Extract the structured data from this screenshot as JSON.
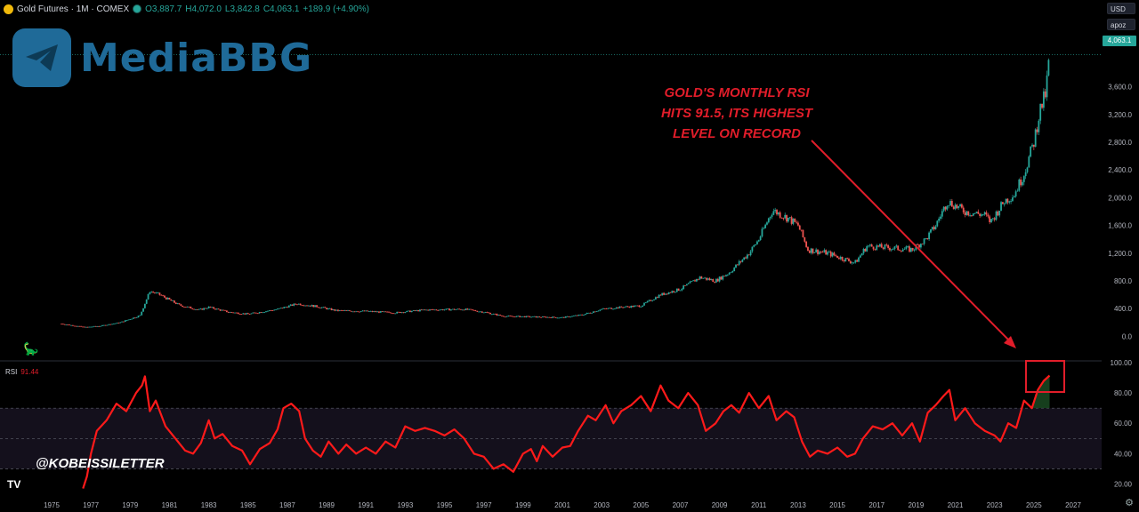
{
  "header": {
    "symbol": "Gold Futures · 1M · COMEX",
    "open": "O3,887.7",
    "high": "H4,072.0",
    "low": "L3,842.8",
    "close": "C4,063.1",
    "change": "+189.9 (+4.90%)",
    "currency_button": "USD",
    "scale_button": "apoz"
  },
  "watermark": {
    "text": "MediaBBG",
    "icon": "telegram-plane-icon"
  },
  "annotation": {
    "lines": [
      "GOLD'S MONTHLY RSI",
      "HITS 91.5, ITS HIGHEST",
      "LEVEL ON RECORD"
    ]
  },
  "handle": "@KOBEISSILETTER",
  "rsi": {
    "label": "RSI",
    "value": "91.44"
  },
  "last_price_tag": "4,063.1",
  "colors": {
    "up": "#26a69a",
    "down": "#ef5350",
    "rsi": "#ff1a1a",
    "accent": "#e11d2a",
    "watermark": "#1f6a98"
  },
  "chart_data": [
    {
      "type": "line",
      "subtype": "candlestick",
      "series_name": "Gold Futures",
      "x": [
        1975.5,
        1976.7,
        1977.5,
        1978.5,
        1979.5,
        1980.0,
        1980.5,
        1981.5,
        1982.5,
        1983.0,
        1984.0,
        1985.0,
        1986.5,
        1987.5,
        1988.5,
        1989.5,
        1991.0,
        1992.5,
        1994.0,
        1996.0,
        1997.0,
        1998.0,
        1999.5,
        2001.0,
        2002.0,
        2003.0,
        2004.0,
        2005.0,
        2006.0,
        2007.0,
        2008.0,
        2008.8,
        2009.5,
        2010.5,
        2011.0,
        2011.7,
        2012.5,
        2013.0,
        2013.5,
        2014.5,
        2015.9,
        2016.5,
        2017.5,
        2018.8,
        2019.5,
        2020.0,
        2020.6,
        2021.5,
        2022.5,
        2022.8,
        2023.5,
        2024.0,
        2024.5,
        2025.0,
        2025.3,
        2025.6,
        2025.8
      ],
      "y": [
        180,
        130,
        150,
        200,
        300,
        650,
        600,
        450,
        380,
        420,
        350,
        320,
        390,
        470,
        430,
        370,
        360,
        340,
        380,
        390,
        350,
        290,
        280,
        270,
        310,
        390,
        420,
        440,
        600,
        680,
        850,
        800,
        920,
        1200,
        1400,
        1820,
        1700,
        1600,
        1250,
        1200,
        1060,
        1300,
        1280,
        1250,
        1400,
        1600,
        1950,
        1800,
        1750,
        1650,
        1950,
        2050,
        2350,
        2800,
        3250,
        3500,
        4063.1
      ],
      "ylim": [
        -150,
        4250
      ],
      "y_ticks": [
        "0.0",
        "400.0",
        "800.0",
        "1,200.0",
        "1,600.0",
        "2,000.0",
        "2,400.0",
        "2,800.0",
        "3,200.0",
        "3,600.0"
      ]
    },
    {
      "type": "line",
      "series_name": "RSI",
      "x": [
        1976.6,
        1976.8,
        1977.0,
        1977.3,
        1977.8,
        1978.3,
        1978.8,
        1979.3,
        1979.6,
        1979.75,
        1980.0,
        1980.3,
        1980.8,
        1981.3,
        1981.8,
        1982.2,
        1982.6,
        1983.0,
        1983.3,
        1983.7,
        1984.2,
        1984.7,
        1985.1,
        1985.6,
        1986.1,
        1986.5,
        1986.8,
        1987.2,
        1987.6,
        1987.9,
        1988.3,
        1988.7,
        1989.1,
        1989.6,
        1990.0,
        1990.5,
        1991.0,
        1991.5,
        1992.0,
        1992.5,
        1993.0,
        1993.5,
        1994.0,
        1994.5,
        1995.0,
        1995.5,
        1996.0,
        1996.5,
        1997.0,
        1997.5,
        1998.0,
        1998.5,
        1999.0,
        1999.4,
        1999.7,
        2000.0,
        2000.5,
        2001.0,
        2001.4,
        2001.8,
        2002.3,
        2002.7,
        2003.2,
        2003.6,
        2004.0,
        2004.5,
        2005.0,
        2005.5,
        2006.0,
        2006.4,
        2006.9,
        2007.4,
        2007.9,
        2008.3,
        2008.8,
        2009.2,
        2009.6,
        2010.0,
        2010.5,
        2011.0,
        2011.5,
        2011.9,
        2012.4,
        2012.8,
        2013.2,
        2013.6,
        2014.0,
        2014.5,
        2015.0,
        2015.5,
        2015.9,
        2016.3,
        2016.8,
        2017.3,
        2017.8,
        2018.3,
        2018.8,
        2019.2,
        2019.6,
        2020.0,
        2020.4,
        2020.7,
        2021.0,
        2021.5,
        2022.0,
        2022.5,
        2023.0,
        2023.3,
        2023.7,
        2024.1,
        2024.5,
        2024.9,
        2025.2,
        2025.5,
        2025.8
      ],
      "y": [
        17,
        25,
        40,
        55,
        62,
        73,
        68,
        80,
        85,
        91,
        68,
        75,
        58,
        50,
        42,
        40,
        47,
        62,
        50,
        53,
        45,
        42,
        33,
        43,
        47,
        56,
        70,
        73,
        68,
        50,
        42,
        38,
        48,
        40,
        46,
        40,
        44,
        40,
        48,
        44,
        58,
        55,
        57,
        55,
        52,
        56,
        50,
        40,
        38,
        30,
        33,
        28,
        40,
        43,
        35,
        45,
        38,
        44,
        45,
        55,
        65,
        62,
        72,
        60,
        68,
        72,
        78,
        68,
        85,
        75,
        70,
        80,
        72,
        55,
        60,
        68,
        72,
        67,
        80,
        70,
        78,
        62,
        68,
        64,
        48,
        38,
        42,
        40,
        44,
        38,
        40,
        50,
        58,
        56,
        60,
        52,
        60,
        48,
        67,
        72,
        78,
        82,
        62,
        70,
        60,
        55,
        52,
        48,
        60,
        57,
        75,
        70,
        82,
        88,
        91.5
      ],
      "ylim": [
        15,
        100
      ],
      "y_ticks": [
        "20.00",
        "40.00",
        "60.00",
        "80.00",
        "100.00"
      ],
      "bands": [
        30,
        50,
        70
      ]
    }
  ],
  "x_axis": {
    "ticks": [
      "1975",
      "1977",
      "1979",
      "1981",
      "1983",
      "1985",
      "1987",
      "1989",
      "1991",
      "1993",
      "1995",
      "1997",
      "1999",
      "2001",
      "2003",
      "2005",
      "2007",
      "2009",
      "2011",
      "2013",
      "2015",
      "2017",
      "2019",
      "2021",
      "2023",
      "2025",
      "2027"
    ]
  }
}
